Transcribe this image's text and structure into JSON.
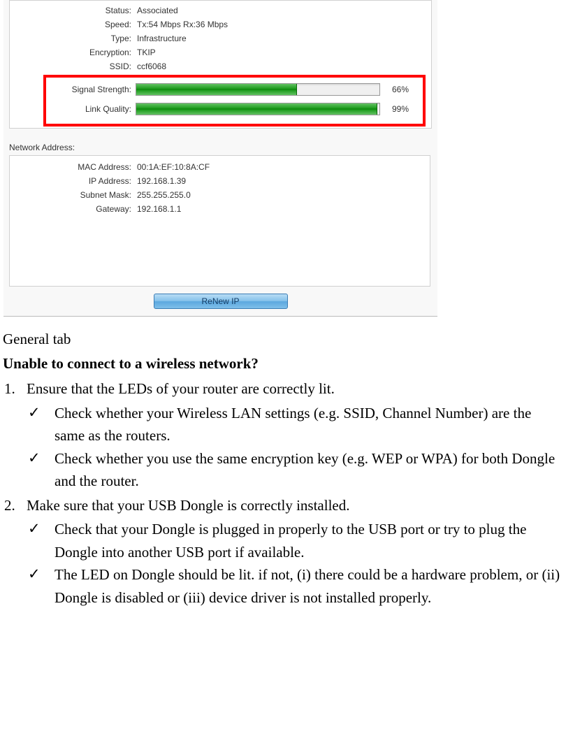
{
  "wifi_status": {
    "status_label": "Status:",
    "status_value": "Associated",
    "speed_label": "Speed:",
    "speed_value": "Tx:54 Mbps Rx:36 Mbps",
    "type_label": "Type:",
    "type_value": "Infrastructure",
    "encryption_label": "Encryption:",
    "encryption_value": "TKIP",
    "ssid_label": "SSID:",
    "ssid_value": "ccf6068"
  },
  "bars": {
    "signal_label": "Signal Strength:",
    "signal_pct": 66,
    "signal_pct_text": "66%",
    "link_label": "Link Quality:",
    "link_pct": 99,
    "link_pct_text": "99%",
    "bar_fill_gradient_top": "#64c264",
    "bar_fill_gradient_mid": "#1a9a1a",
    "bar_border": "#999999",
    "bar_track": "#f0f0f0",
    "highlight_border_color": "#ff0000"
  },
  "network_address": {
    "header": "Network Address:",
    "mac_label": "MAC Address:",
    "mac_value": "00:1A:EF:10:8A:CF",
    "ip_label": "IP Address:",
    "ip_value": "192.168.1.39",
    "subnet_label": "Subnet Mask:",
    "subnet_value": "255.255.255.0",
    "gateway_label": "Gateway:",
    "gateway_value": "192.168.1.1"
  },
  "button": {
    "renew_label": "ReNew IP",
    "bg_top": "#b8dcf5",
    "bg_bottom": "#7fbfe9",
    "border": "#3b7db5",
    "text_color": "#113a63"
  },
  "doc": {
    "caption": "General tab",
    "question": "Unable to connect to a wireless network?",
    "item1_num": "1.",
    "item1_text": "Ensure that the LEDs of your router are correctly lit.",
    "item1_check1": "Check whether your Wireless LAN settings (e.g. SSID, Channel Number) are the same as the routers.",
    "item1_check2": "Check whether you use the same encryption key (e.g. WEP or WPA) for both Dongle and the router.",
    "item2_num": "2.",
    "item2_text": "Make sure that your USB Dongle is correctly installed.",
    "item2_check1": "Check that your Dongle is plugged in properly to the USB port or try to plug the Dongle into another USB port if available.",
    "item2_check2": "The LED on Dongle should be lit. if not, (i) there could be a hardware problem, or (ii) Dongle is disabled or (iii) device driver is not installed properly.",
    "check_glyph": "✓",
    "font_body_size_pt": 16,
    "font_body_family": "Times New Roman"
  },
  "colors": {
    "panel_bg": "#ffffff",
    "outer_bg": "#f8f8f8",
    "panel_border": "#d0d0d0",
    "text": "#333333",
    "doc_text": "#000000"
  }
}
